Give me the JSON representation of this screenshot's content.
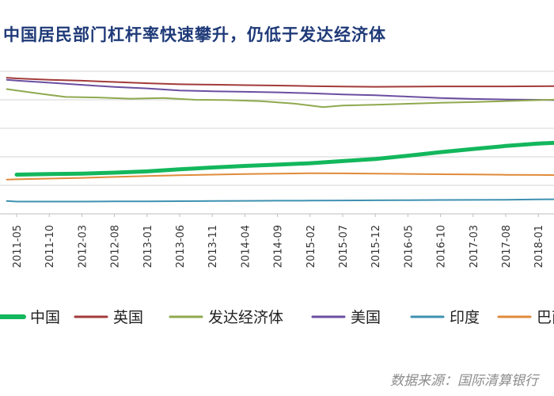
{
  "chart_data": {
    "type": "line",
    "title": "中国居民部门杠杆率快速攀升，仍低于发达经济体",
    "xlabel": "",
    "ylabel": "",
    "x_axis_labels": [
      "2011-05",
      "2011-10",
      "2012-03",
      "2012-08",
      "2013-01",
      "2013-06",
      "2013-11",
      "2014-04",
      "2014-09",
      "2015-02",
      "2015-07",
      "2015-12",
      "2016-05",
      "2016-10",
      "2017-03",
      "2017-08",
      "2018-01"
    ],
    "ylim": [
      0,
      100
    ],
    "grid": true,
    "legend_position": "bottom",
    "series": [
      {
        "name": "中国",
        "color": "#13b75c",
        "linewidth": 5,
        "points": [
          [
            0,
            27.5
          ],
          [
            1,
            27.9
          ],
          [
            2,
            28.2
          ],
          [
            3,
            28.9
          ],
          [
            4,
            29.8
          ],
          [
            5,
            31.3
          ],
          [
            6,
            32.5
          ],
          [
            7,
            33.6
          ],
          [
            8,
            34.5
          ],
          [
            9,
            35.5
          ],
          [
            10,
            37.0
          ],
          [
            11,
            38.5
          ],
          [
            12,
            40.8
          ],
          [
            13,
            43.3
          ],
          [
            14,
            45.5
          ],
          [
            15,
            47.6
          ],
          [
            16,
            49.3
          ],
          [
            17,
            50.3
          ]
        ]
      },
      {
        "name": "英国",
        "color": "#a33a3a",
        "linewidth": 2,
        "points": [
          [
            -0.3,
            95.5
          ],
          [
            0,
            95.0
          ],
          [
            1,
            94.0
          ],
          [
            2,
            93.4
          ],
          [
            3,
            92.5
          ],
          [
            4,
            91.6
          ],
          [
            5,
            90.9
          ],
          [
            6,
            90.6
          ],
          [
            7,
            90.3
          ],
          [
            8,
            90.0
          ],
          [
            9,
            89.6
          ],
          [
            10,
            89.3
          ],
          [
            11,
            89.1
          ],
          [
            12,
            89.2
          ],
          [
            13,
            89.4
          ],
          [
            14,
            89.4
          ],
          [
            15,
            89.4
          ],
          [
            16,
            89.5
          ],
          [
            17,
            89.6
          ]
        ]
      },
      {
        "name": "发达经济体",
        "color": "#8fa94e",
        "linewidth": 2,
        "points": [
          [
            -0.3,
            87.5
          ],
          [
            0,
            86.5
          ],
          [
            0.8,
            84.0
          ],
          [
            1.5,
            82.0
          ],
          [
            2.5,
            81.6
          ],
          [
            3.5,
            80.8
          ],
          [
            4.5,
            81.3
          ],
          [
            5.5,
            80.0
          ],
          [
            6.5,
            79.8
          ],
          [
            7.5,
            79.0
          ],
          [
            8.5,
            77.4
          ],
          [
            9.4,
            74.9
          ],
          [
            10,
            76.0
          ],
          [
            11,
            76.5
          ],
          [
            12,
            77.2
          ],
          [
            13,
            77.9
          ],
          [
            14,
            78.4
          ],
          [
            15,
            79.1
          ],
          [
            16,
            79.8
          ],
          [
            17,
            80.4
          ]
        ]
      },
      {
        "name": "美国",
        "color": "#6b4ea0",
        "linewidth": 2,
        "points": [
          [
            -0.3,
            94.0
          ],
          [
            0,
            93.5
          ],
          [
            1,
            92.0
          ],
          [
            2,
            90.5
          ],
          [
            3,
            89.0
          ],
          [
            4,
            88.0
          ],
          [
            5,
            86.5
          ],
          [
            6,
            86.0
          ],
          [
            7,
            85.6
          ],
          [
            8,
            85.2
          ],
          [
            9,
            84.6
          ],
          [
            10,
            83.8
          ],
          [
            11,
            83.2
          ],
          [
            12,
            82.2
          ],
          [
            13,
            81.2
          ],
          [
            14,
            80.6
          ],
          [
            15,
            80.2
          ],
          [
            16,
            80.0
          ],
          [
            17,
            79.6
          ]
        ]
      },
      {
        "name": "印度",
        "color": "#3e91b1",
        "linewidth": 2,
        "points": [
          [
            -0.3,
            9.0
          ],
          [
            0,
            8.6
          ],
          [
            1,
            8.6
          ],
          [
            2,
            8.6
          ],
          [
            3,
            8.7
          ],
          [
            4,
            8.8
          ],
          [
            5,
            8.9
          ],
          [
            6,
            9.0
          ],
          [
            7,
            9.1
          ],
          [
            8,
            9.2
          ],
          [
            9,
            9.3
          ],
          [
            10,
            9.4
          ],
          [
            11,
            9.5
          ],
          [
            12,
            9.6
          ],
          [
            13,
            9.7
          ],
          [
            14,
            9.8
          ],
          [
            15,
            9.9
          ],
          [
            16,
            10.1
          ],
          [
            17,
            10.3
          ]
        ]
      },
      {
        "name": "巴西",
        "color": "#e08b3b",
        "linewidth": 2,
        "points": [
          [
            -0.3,
            24.0
          ],
          [
            0,
            24.2
          ],
          [
            1,
            24.7
          ],
          [
            2,
            25.2
          ],
          [
            3,
            25.9
          ],
          [
            4,
            26.5
          ],
          [
            5,
            27.1
          ],
          [
            6,
            27.5
          ],
          [
            7,
            27.9
          ],
          [
            8,
            28.2
          ],
          [
            9,
            28.5
          ],
          [
            10,
            28.4
          ],
          [
            11,
            28.2
          ],
          [
            12,
            28.0
          ],
          [
            13,
            27.8
          ],
          [
            14,
            27.6
          ],
          [
            15,
            27.4
          ],
          [
            16,
            27.3
          ],
          [
            17,
            27.0
          ]
        ]
      }
    ]
  },
  "source_note": "数据来源：国际清算银行"
}
